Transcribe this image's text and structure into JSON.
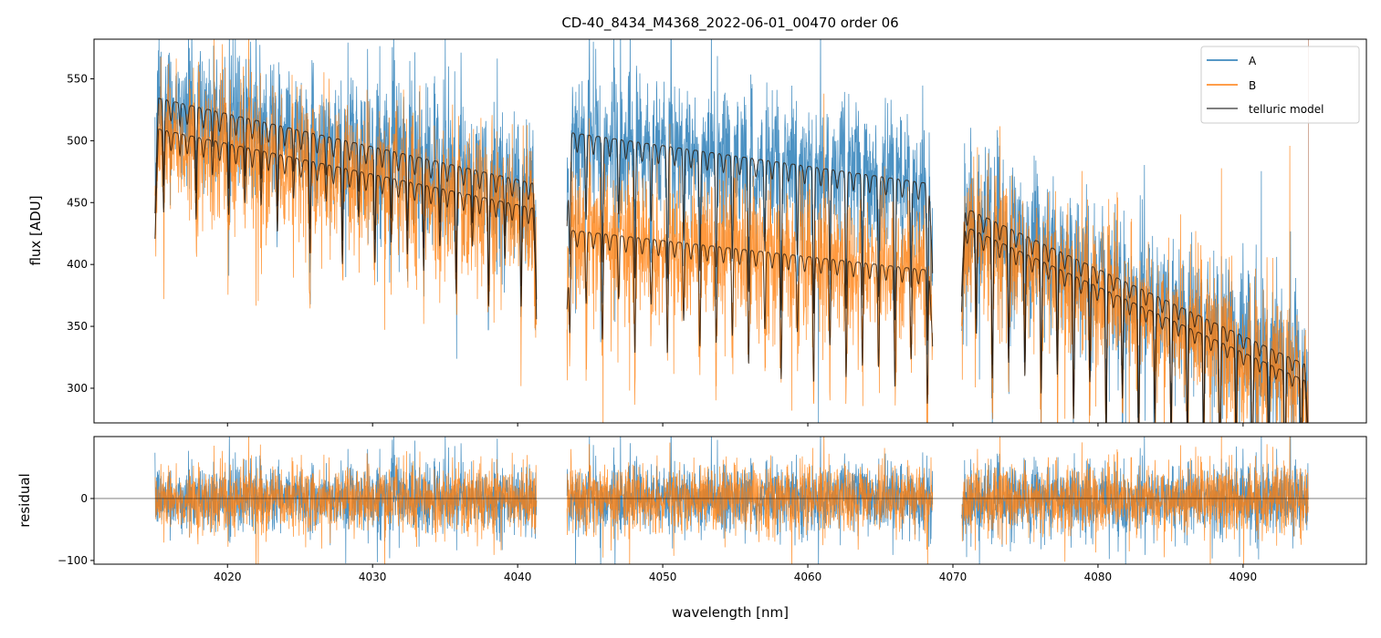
{
  "chart_data": {
    "type": "line",
    "title": "CD-40_8434_M4368_2022-06-01_00470  order 06",
    "xlabel": "wavelength [nm]",
    "xlim": [
      4010.8,
      4098.5
    ],
    "xticks": [
      4020,
      4030,
      4040,
      4050,
      4060,
      4070,
      4080,
      4090
    ],
    "xtick_labels": [
      "4020",
      "4030",
      "4040",
      "4050",
      "4060",
      "4070",
      "4080",
      "4090"
    ],
    "legend": {
      "placement": "top-right",
      "entries": [
        "A",
        "B",
        "telluric model"
      ]
    },
    "colors": {
      "A": "#1f77b4",
      "B": "#ff7f0e",
      "telluric model": "#555555"
    },
    "top_panel": {
      "ylabel": "flux [ADU]",
      "ylim": [
        272,
        582
      ],
      "yticks": [
        300,
        350,
        400,
        450,
        500,
        550
      ],
      "ytick_labels": [
        "300",
        "350",
        "400",
        "450",
        "500",
        "550"
      ],
      "segments": [
        {
          "x_range": [
            4015.0,
            4041.3
          ],
          "A_continuum": [
            535,
            465
          ],
          "B_continuum": [
            510,
            445
          ]
        },
        {
          "x_range": [
            4043.4,
            4068.6
          ],
          "A_continuum": [
            507,
            465
          ],
          "B_continuum": [
            428,
            395
          ]
        },
        {
          "x_range": [
            4070.6,
            4094.5
          ],
          "A_continuum": [
            447,
            318
          ],
          "B_continuum": [
            432,
            305
          ]
        }
      ]
    },
    "bottom_panel": {
      "ylabel": "residual",
      "ylim": [
        -106,
        100
      ],
      "yticks": [
        -100,
        0
      ],
      "ytick_labels": [
        "−100",
        "0"
      ],
      "zero_line": true
    }
  }
}
